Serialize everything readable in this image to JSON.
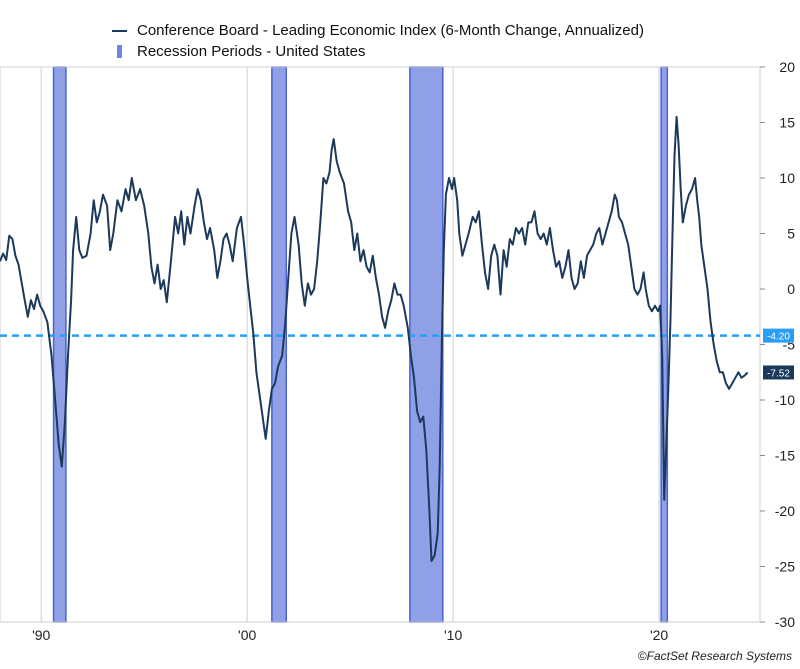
{
  "chart_data": {
    "type": "line",
    "legend": [
      {
        "name": "Conference Board - Leading Economic Index (6-Month Change, Annualized)",
        "kind": "line",
        "color": "#1b3a5b"
      },
      {
        "name": "Recession Periods - United States",
        "kind": "bar",
        "color": "#6f86e0"
      }
    ],
    "x_range": [
      1988.0,
      2024.9
    ],
    "x_ticks": [
      {
        "x": 1990,
        "label": "'90"
      },
      {
        "x": 2000,
        "label": "'00"
      },
      {
        "x": 2010,
        "label": "'10"
      },
      {
        "x": 2020,
        "label": "'20"
      }
    ],
    "y_range": [
      -30,
      20
    ],
    "y_ticks": [
      20,
      15,
      10,
      5,
      0,
      -5,
      -10,
      -15,
      -20,
      -25,
      -30
    ],
    "axis_side": "right",
    "grid": {
      "vertical": true,
      "horizontal": false
    },
    "recessions": [
      {
        "start": 1990.6,
        "end": 1991.2
      },
      {
        "start": 2001.2,
        "end": 2001.9
      },
      {
        "start": 2007.9,
        "end": 2009.5
      },
      {
        "start": 2020.1,
        "end": 2020.4
      }
    ],
    "reference_line": {
      "value": -4.2,
      "label": "-4.20",
      "color": "#2a9df4"
    },
    "last_value": {
      "value": -7.52,
      "label": "-7.52",
      "color": "#1b3a5b"
    },
    "series": [
      {
        "name": "Conference Board - Leading Economic Index (6-Month Change, Annualized)",
        "color": "#1b3a5b",
        "points": [
          [
            1988.0,
            2.5
          ],
          [
            1988.15,
            3.2
          ],
          [
            1988.3,
            2.6
          ],
          [
            1988.45,
            4.8
          ],
          [
            1988.6,
            4.5
          ],
          [
            1988.75,
            3.0
          ],
          [
            1988.9,
            2.2
          ],
          [
            1989.05,
            0.6
          ],
          [
            1989.2,
            -1.0
          ],
          [
            1989.35,
            -2.5
          ],
          [
            1989.5,
            -1.0
          ],
          [
            1989.65,
            -1.8
          ],
          [
            1989.8,
            -0.5
          ],
          [
            1989.95,
            -1.5
          ],
          [
            1990.1,
            -2.0
          ],
          [
            1990.3,
            -3.0
          ],
          [
            1990.5,
            -6.0
          ],
          [
            1990.7,
            -10.5
          ],
          [
            1990.85,
            -14.0
          ],
          [
            1991.0,
            -16.0
          ],
          [
            1991.15,
            -12.0
          ],
          [
            1991.3,
            -6.0
          ],
          [
            1991.45,
            -1.0
          ],
          [
            1991.55,
            3.5
          ],
          [
            1991.7,
            6.5
          ],
          [
            1991.85,
            3.5
          ],
          [
            1992.0,
            2.8
          ],
          [
            1992.2,
            3.0
          ],
          [
            1992.4,
            5.0
          ],
          [
            1992.55,
            8.0
          ],
          [
            1992.7,
            6.0
          ],
          [
            1992.85,
            7.0
          ],
          [
            1993.0,
            8.5
          ],
          [
            1993.2,
            7.5
          ],
          [
            1993.35,
            3.5
          ],
          [
            1993.5,
            5.0
          ],
          [
            1993.7,
            8.0
          ],
          [
            1993.9,
            7.0
          ],
          [
            1994.1,
            9.0
          ],
          [
            1994.25,
            8.0
          ],
          [
            1994.4,
            10.0
          ],
          [
            1994.6,
            8.0
          ],
          [
            1994.8,
            9.0
          ],
          [
            1995.0,
            7.5
          ],
          [
            1995.2,
            5.0
          ],
          [
            1995.35,
            2.0
          ],
          [
            1995.5,
            0.5
          ],
          [
            1995.65,
            2.2
          ],
          [
            1995.8,
            0.0
          ],
          [
            1995.95,
            0.8
          ],
          [
            1996.1,
            -1.2
          ],
          [
            1996.3,
            2.5
          ],
          [
            1996.5,
            6.5
          ],
          [
            1996.65,
            5.0
          ],
          [
            1996.8,
            7.0
          ],
          [
            1996.95,
            4.0
          ],
          [
            1997.1,
            6.5
          ],
          [
            1997.25,
            5.0
          ],
          [
            1997.45,
            7.5
          ],
          [
            1997.6,
            9.0
          ],
          [
            1997.75,
            8.0
          ],
          [
            1997.9,
            6.0
          ],
          [
            1998.05,
            4.5
          ],
          [
            1998.2,
            5.5
          ],
          [
            1998.4,
            3.5
          ],
          [
            1998.55,
            1.0
          ],
          [
            1998.7,
            2.5
          ],
          [
            1998.85,
            4.5
          ],
          [
            1999.0,
            5.0
          ],
          [
            1999.15,
            4.0
          ],
          [
            1999.3,
            2.5
          ],
          [
            1999.5,
            5.5
          ],
          [
            1999.7,
            6.5
          ],
          [
            1999.85,
            4.0
          ],
          [
            2000.0,
            1.0
          ],
          [
            2000.15,
            -1.5
          ],
          [
            2000.3,
            -4.0
          ],
          [
            2000.45,
            -7.5
          ],
          [
            2000.6,
            -9.5
          ],
          [
            2000.75,
            -11.5
          ],
          [
            2000.9,
            -13.5
          ],
          [
            2001.05,
            -11.0
          ],
          [
            2001.2,
            -9.0
          ],
          [
            2001.35,
            -8.5
          ],
          [
            2001.5,
            -7.0
          ],
          [
            2001.7,
            -6.0
          ],
          [
            2001.85,
            -3.0
          ],
          [
            2002.0,
            1.0
          ],
          [
            2002.15,
            5.0
          ],
          [
            2002.3,
            6.5
          ],
          [
            2002.5,
            4.0
          ],
          [
            2002.65,
            0.5
          ],
          [
            2002.8,
            -1.5
          ],
          [
            2002.95,
            0.5
          ],
          [
            2003.1,
            -0.5
          ],
          [
            2003.25,
            0.0
          ],
          [
            2003.4,
            2.5
          ],
          [
            2003.55,
            6.0
          ],
          [
            2003.7,
            10.0
          ],
          [
            2003.85,
            9.5
          ],
          [
            2004.0,
            10.5
          ],
          [
            2004.1,
            12.5
          ],
          [
            2004.2,
            13.5
          ],
          [
            2004.35,
            11.5
          ],
          [
            2004.5,
            10.5
          ],
          [
            2004.7,
            9.5
          ],
          [
            2004.9,
            7.0
          ],
          [
            2005.05,
            6.0
          ],
          [
            2005.2,
            3.5
          ],
          [
            2005.35,
            5.0
          ],
          [
            2005.5,
            2.5
          ],
          [
            2005.65,
            3.5
          ],
          [
            2005.8,
            2.0
          ],
          [
            2005.95,
            1.5
          ],
          [
            2006.1,
            3.0
          ],
          [
            2006.25,
            1.0
          ],
          [
            2006.4,
            -0.5
          ],
          [
            2006.55,
            -2.5
          ],
          [
            2006.7,
            -3.5
          ],
          [
            2006.85,
            -2.0
          ],
          [
            2007.0,
            -1.0
          ],
          [
            2007.15,
            0.5
          ],
          [
            2007.3,
            -0.5
          ],
          [
            2007.45,
            -0.5
          ],
          [
            2007.6,
            -1.5
          ],
          [
            2007.8,
            -3.5
          ],
          [
            2007.95,
            -6.0
          ],
          [
            2008.1,
            -8.0
          ],
          [
            2008.25,
            -11.0
          ],
          [
            2008.4,
            -12.0
          ],
          [
            2008.55,
            -11.5
          ],
          [
            2008.7,
            -14.5
          ],
          [
            2008.85,
            -20.0
          ],
          [
            2008.95,
            -24.5
          ],
          [
            2009.1,
            -24.0
          ],
          [
            2009.25,
            -22.0
          ],
          [
            2009.35,
            -16.0
          ],
          [
            2009.45,
            -5.0
          ],
          [
            2009.55,
            3.5
          ],
          [
            2009.65,
            8.5
          ],
          [
            2009.8,
            10.0
          ],
          [
            2009.95,
            9.0
          ],
          [
            2010.05,
            10.0
          ],
          [
            2010.2,
            8.0
          ],
          [
            2010.3,
            5.0
          ],
          [
            2010.45,
            3.0
          ],
          [
            2010.6,
            4.0
          ],
          [
            2010.75,
            5.0
          ],
          [
            2010.95,
            6.5
          ],
          [
            2011.1,
            6.0
          ],
          [
            2011.25,
            7.0
          ],
          [
            2011.4,
            4.0
          ],
          [
            2011.55,
            1.5
          ],
          [
            2011.7,
            0.0
          ],
          [
            2011.85,
            3.0
          ],
          [
            2012.0,
            4.0
          ],
          [
            2012.15,
            3.0
          ],
          [
            2012.3,
            -0.5
          ],
          [
            2012.45,
            3.5
          ],
          [
            2012.6,
            2.0
          ],
          [
            2012.75,
            4.5
          ],
          [
            2012.9,
            4.0
          ],
          [
            2013.05,
            5.5
          ],
          [
            2013.2,
            5.0
          ],
          [
            2013.35,
            5.5
          ],
          [
            2013.5,
            4.0
          ],
          [
            2013.65,
            6.0
          ],
          [
            2013.8,
            6.0
          ],
          [
            2013.95,
            7.0
          ],
          [
            2014.1,
            5.0
          ],
          [
            2014.25,
            4.5
          ],
          [
            2014.4,
            5.0
          ],
          [
            2014.55,
            4.0
          ],
          [
            2014.7,
            5.5
          ],
          [
            2014.85,
            3.5
          ],
          [
            2015.0,
            2.0
          ],
          [
            2015.15,
            2.5
          ],
          [
            2015.3,
            1.0
          ],
          [
            2015.45,
            2.0
          ],
          [
            2015.6,
            3.5
          ],
          [
            2015.75,
            1.0
          ],
          [
            2015.9,
            0.0
          ],
          [
            2016.05,
            0.5
          ],
          [
            2016.2,
            2.5
          ],
          [
            2016.35,
            1.0
          ],
          [
            2016.5,
            3.0
          ],
          [
            2016.65,
            3.5
          ],
          [
            2016.8,
            4.0
          ],
          [
            2016.95,
            5.0
          ],
          [
            2017.1,
            5.5
          ],
          [
            2017.25,
            4.0
          ],
          [
            2017.4,
            5.0
          ],
          [
            2017.55,
            6.0
          ],
          [
            2017.7,
            7.0
          ],
          [
            2017.85,
            8.5
          ],
          [
            2017.95,
            8.0
          ],
          [
            2018.05,
            6.5
          ],
          [
            2018.2,
            6.0
          ],
          [
            2018.35,
            5.0
          ],
          [
            2018.5,
            4.0
          ],
          [
            2018.65,
            2.0
          ],
          [
            2018.8,
            0.0
          ],
          [
            2018.95,
            -0.5
          ],
          [
            2019.1,
            0.0
          ],
          [
            2019.25,
            1.5
          ],
          [
            2019.35,
            0.0
          ],
          [
            2019.5,
            -1.5
          ],
          [
            2019.65,
            -2.0
          ],
          [
            2019.8,
            -1.5
          ],
          [
            2019.95,
            -2.0
          ],
          [
            2020.05,
            -1.5
          ],
          [
            2020.15,
            -6.0
          ],
          [
            2020.25,
            -19.0
          ],
          [
            2020.35,
            -14.0
          ],
          [
            2020.45,
            -9.0
          ],
          [
            2020.55,
            -3.0
          ],
          [
            2020.65,
            5.0
          ],
          [
            2020.75,
            12.0
          ],
          [
            2020.85,
            15.5
          ],
          [
            2020.95,
            13.0
          ],
          [
            2021.05,
            9.0
          ],
          [
            2021.15,
            6.0
          ],
          [
            2021.3,
            7.5
          ],
          [
            2021.45,
            8.5
          ],
          [
            2021.6,
            9.0
          ],
          [
            2021.75,
            10.0
          ],
          [
            2021.85,
            8.0
          ],
          [
            2021.95,
            6.5
          ],
          [
            2022.05,
            4.0
          ],
          [
            2022.2,
            2.0
          ],
          [
            2022.35,
            0.0
          ],
          [
            2022.5,
            -3.0
          ],
          [
            2022.65,
            -5.0
          ],
          [
            2022.8,
            -6.5
          ],
          [
            2022.95,
            -7.5
          ],
          [
            2023.1,
            -7.5
          ],
          [
            2023.25,
            -8.5
          ],
          [
            2023.4,
            -9.0
          ],
          [
            2023.55,
            -8.5
          ],
          [
            2023.7,
            -8.0
          ],
          [
            2023.85,
            -7.5
          ],
          [
            2024.0,
            -8.0
          ],
          [
            2024.15,
            -7.8
          ],
          [
            2024.3,
            -7.52
          ]
        ]
      }
    ]
  },
  "credit": "©FactSet Research Systems"
}
